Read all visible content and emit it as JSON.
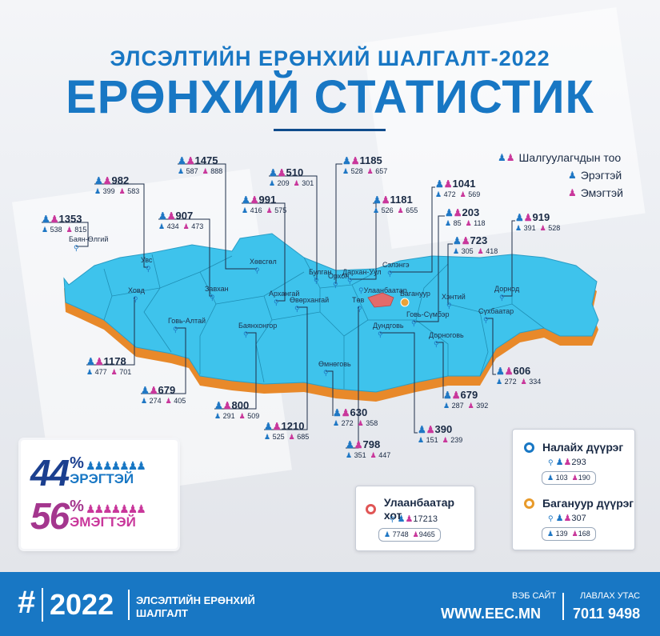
{
  "header": {
    "subtitle": "ЭЛСЭЛТИЙН ЕРӨНХИЙ ШАЛГАЛТ-2022",
    "title": "ЕРӨНХИЙ СТАТИСТИК"
  },
  "legend": {
    "total": "Шалгуулагчдын тоо",
    "male": "Эрэгтэй",
    "female": "Эмэгтэй"
  },
  "colors": {
    "brand_blue": "#1877c4",
    "map_fill": "#3ec3ec",
    "map_side": "#e8892a",
    "capital_red": "#e26b6b",
    "female_pink": "#c9379b",
    "male_navy": "#1b3f8f",
    "female_purple": "#a4368e"
  },
  "provinces": [
    {
      "name": "Баян-Өлгий",
      "total": "1353",
      "male": "538",
      "female": "815"
    },
    {
      "name": "Увс",
      "total": "982",
      "male": "399",
      "female": "583"
    },
    {
      "name": "Завхан",
      "total": "907",
      "male": "434",
      "female": "473"
    },
    {
      "name": "Хөвсгөл",
      "total": "1475",
      "male": "587",
      "female": "888"
    },
    {
      "name": "Архангай",
      "total": "991",
      "male": "416",
      "female": "575"
    },
    {
      "name": "Булган",
      "total": "510",
      "male": "209",
      "female": "301"
    },
    {
      "name": "Орхон",
      "total": "1185",
      "male": "528",
      "female": "657"
    },
    {
      "name": "Дархан-Уул",
      "total": "1181",
      "male": "526",
      "female": "655"
    },
    {
      "name": "Сэлэнгэ",
      "total": "1041",
      "male": "472",
      "female": "569"
    },
    {
      "name": "Говь-Сүмбэр",
      "total": "203",
      "male": "85",
      "female": "118"
    },
    {
      "name": "Хэнтий",
      "total": "723",
      "male": "305",
      "female": "418"
    },
    {
      "name": "Дорнод",
      "total": "919",
      "male": "391",
      "female": "528"
    },
    {
      "name": "Ховд",
      "total": "1178",
      "male": "477",
      "female": "701"
    },
    {
      "name": "Говь-Алтай",
      "total": "679",
      "male": "274",
      "female": "405"
    },
    {
      "name": "Баянхонгор",
      "total": "800",
      "male": "291",
      "female": "509"
    },
    {
      "name": "Өвөрхангай",
      "total": "1210",
      "male": "525",
      "female": "685"
    },
    {
      "name": "Өмнөговь",
      "total": "630",
      "male": "272",
      "female": "358"
    },
    {
      "name": "Төв",
      "total": "798",
      "male": "351",
      "female": "447"
    },
    {
      "name": "Дундговь",
      "total": "390",
      "male": "151",
      "female": "239"
    },
    {
      "name": "Дорноговь",
      "total": "679",
      "male": "287",
      "female": "392"
    },
    {
      "name": "Сүхбаатар",
      "total": "606",
      "male": "272",
      "female": "334"
    }
  ],
  "map_labels": {
    "ulaanbaatar": "Улаанбаатар",
    "baganuur": "Багануур"
  },
  "percent": {
    "male_value": "44",
    "male_label": "ЭРЭГТЭЙ",
    "female_value": "56",
    "female_label": "ЭМЭГТЭЙ",
    "sign": "%"
  },
  "ulaanbaatar_card": {
    "name": "Улаанбаатар хот",
    "total": "17213",
    "male": "7748",
    "female": "9465"
  },
  "nalaikh_card": {
    "name": "Налайх дүүрэг",
    "total": "293",
    "male": "103",
    "female": "190"
  },
  "baganuur_card": {
    "name": "Багануур дүүрэг",
    "total": "307",
    "male": "139",
    "female": "168"
  },
  "footer": {
    "hash": "#",
    "year": "2022",
    "exam_line1": "ЭЛСЭЛТИЙН ЕРӨНХИЙ",
    "exam_line2": "ШАЛГАЛТ",
    "web_label": "ВЭБ САЙТ",
    "web": "WWW.EEC.MN",
    "phone_label": "ЛАВЛАХ УТАС",
    "phone": "7011 9498"
  }
}
